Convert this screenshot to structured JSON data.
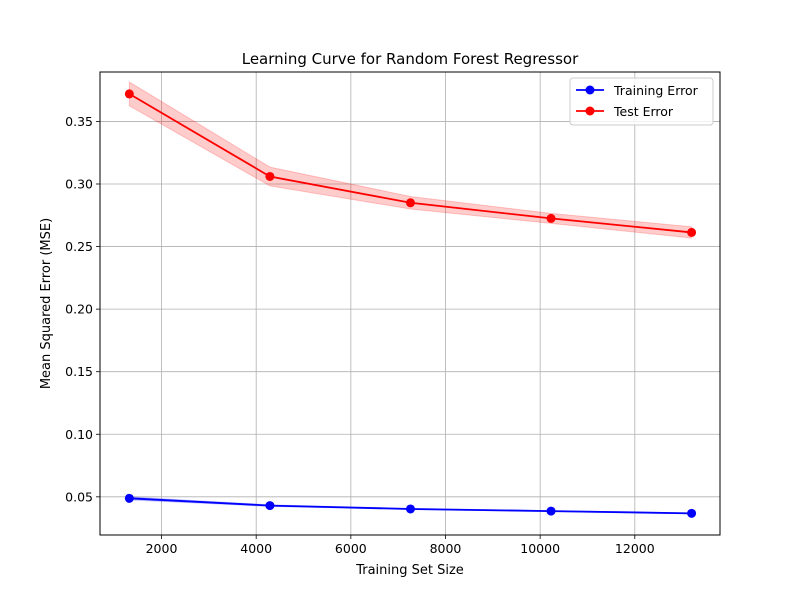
{
  "chart_data": {
    "type": "line",
    "title": "Learning Curve for Random Forest Regressor",
    "xlabel": "Training Set Size",
    "ylabel": "Mean Squared Error (MSE)",
    "xlim": [
      700,
      13800
    ],
    "ylim": [
      0.0195,
      0.3895
    ],
    "xticks": [
      2000,
      4000,
      6000,
      8000,
      10000,
      12000
    ],
    "yticks": [
      0.05,
      0.1,
      0.15,
      0.2,
      0.25,
      0.3,
      0.35
    ],
    "xtick_labels": [
      "2000",
      "4000",
      "6000",
      "8000",
      "10000",
      "12000"
    ],
    "ytick_labels": [
      "0.05",
      "0.10",
      "0.15",
      "0.20",
      "0.25",
      "0.30",
      "0.35"
    ],
    "grid": true,
    "legend": "top-right",
    "x": [
      1320,
      4290,
      7260,
      10230,
      13200
    ],
    "series": [
      {
        "name": "Training Error",
        "color": "#0000ff",
        "band_color": "#0000ff",
        "values": [
          0.0488,
          0.043,
          0.0403,
          0.0386,
          0.0368
        ],
        "std": [
          0.0012,
          0.0006,
          0.0004,
          0.0003,
          0.0003
        ]
      },
      {
        "name": "Test Error",
        "color": "#ff0000",
        "band_color": "#ff0000",
        "values": [
          0.372,
          0.306,
          0.285,
          0.2725,
          0.2613
        ],
        "std": [
          0.0095,
          0.0075,
          0.005,
          0.004,
          0.0045
        ]
      }
    ]
  }
}
